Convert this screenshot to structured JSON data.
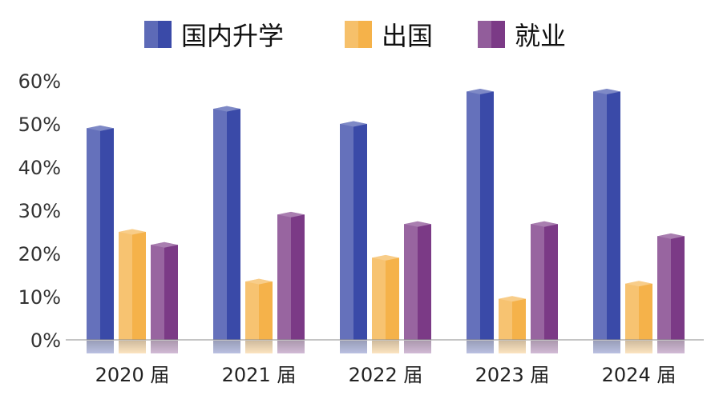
{
  "chart_data": {
    "type": "bar",
    "title": "",
    "xlabel": "",
    "ylabel": "",
    "categories": [
      "2020 届",
      "2021 届",
      "2022 届",
      "2023 届",
      "2024 届"
    ],
    "y_ticks": [
      "0%",
      "10%",
      "20%",
      "30%",
      "40%",
      "50%",
      "60%"
    ],
    "ylim": [
      0,
      60
    ],
    "unit": "%",
    "legend_position": "top-center",
    "grid": false,
    "series": [
      {
        "name": "国内升学",
        "color": "#3a4aa8",
        "values": [
          49,
          53.5,
          50,
          57.5,
          57.5
        ]
      },
      {
        "name": "出国",
        "color": "#f5b24a",
        "values": [
          25,
          13.5,
          19,
          9.5,
          13
        ]
      },
      {
        "name": "就业",
        "color": "#7b3a86",
        "values": [
          22,
          29,
          26.8,
          26.8,
          24
        ]
      }
    ]
  }
}
